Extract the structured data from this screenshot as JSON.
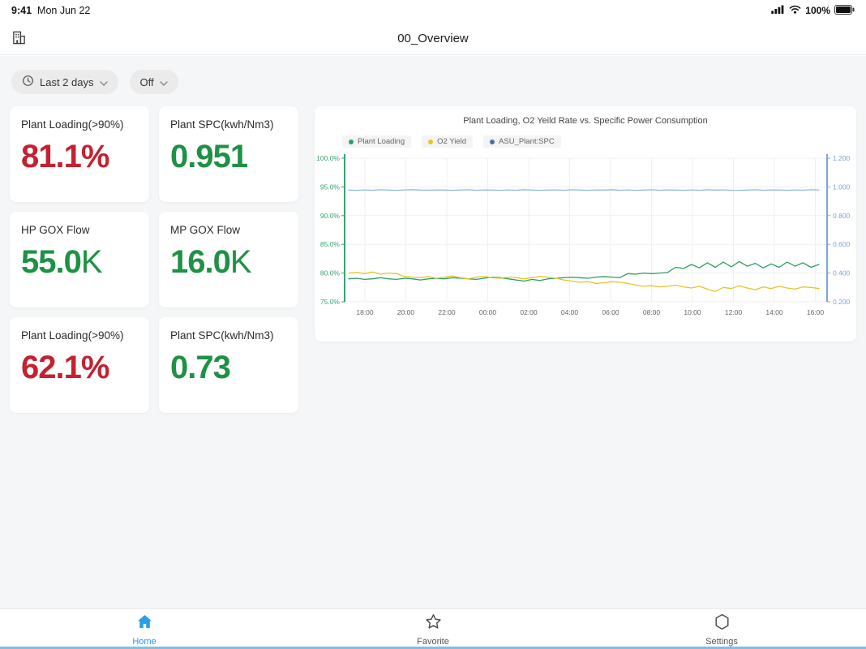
{
  "status_bar": {
    "time": "9:41",
    "date": "Mon Jun 22",
    "battery_percent": "100%"
  },
  "header": {
    "title": "00_Overview"
  },
  "filters": {
    "time_range_label": "Last 2 days",
    "toggle_label": "Off"
  },
  "kpi_cards": [
    {
      "label": "Plant Loading(>90%)",
      "value": "81.1%",
      "suffix": "",
      "color": "#c52130"
    },
    {
      "label": "Plant SPC(kwh/Nm3)",
      "value": "0.951",
      "suffix": "",
      "color": "#1e9144"
    },
    {
      "label": "HP GOX Flow",
      "value": "55.0",
      "suffix": "K",
      "color": "#1e9144"
    },
    {
      "label": "MP GOX Flow",
      "value": "16.0",
      "suffix": "K",
      "color": "#1e9144"
    },
    {
      "label": "Plant Loading(>90%)",
      "value": "62.1%",
      "suffix": "",
      "color": "#c52130"
    },
    {
      "label": "Plant SPC(kwh/Nm3)",
      "value": "0.73",
      "suffix": "",
      "color": "#1e9144"
    }
  ],
  "chart_data": {
    "type": "line",
    "title": "Plant Loading, O2 Yeild Rate vs. Specific Power Consumption",
    "legend_position": "top-left",
    "grid": true,
    "legend": [
      {
        "label": "Plant Loading",
        "color": "#2f9e63"
      },
      {
        "label": "O2 Yield",
        "color": "#e3c52c"
      },
      {
        "label": "ASU_Plant:SPC",
        "color": "#4a6fa5"
      }
    ],
    "x_tick_labels": [
      "18:00",
      "20:00",
      "22:00",
      "00:00",
      "02:00",
      "04:00",
      "06:00",
      "08:00",
      "10:00",
      "12:00",
      "14:00",
      "16:00"
    ],
    "left_axis": {
      "label_ticks": [
        "100.0%",
        "95.0%",
        "90.0%",
        "85.0%",
        "80.0%",
        "75.0%"
      ],
      "min": 75,
      "max": 100,
      "color": "#3aa273"
    },
    "right_axis": {
      "label_ticks": [
        "1.200",
        "1.000",
        "0.800",
        "0.600",
        "0.400",
        "0.200"
      ],
      "min": 0.2,
      "max": 1.2,
      "color": "#7ca6d8"
    },
    "series": [
      {
        "name": "Plant Loading",
        "axis": "left",
        "color": "#2f9e63",
        "values": [
          79.0,
          79.1,
          78.9,
          79.0,
          79.2,
          79.0,
          78.9,
          79.1,
          79.0,
          78.8,
          79.0,
          79.1,
          79.0,
          79.2,
          79.1,
          79.0,
          78.9,
          79.1,
          79.3,
          79.2,
          79.0,
          78.8,
          78.6,
          78.9,
          78.7,
          79.0,
          79.1,
          79.2,
          79.3,
          79.2,
          79.1,
          79.3,
          79.4,
          79.3,
          79.2,
          79.9,
          79.8,
          80.0,
          79.9,
          80.0,
          80.1,
          81.0,
          80.8,
          81.5,
          80.9,
          81.8,
          81.0,
          81.9,
          81.1,
          82.0,
          81.2,
          81.7,
          80.9,
          81.6,
          81.0,
          81.9,
          81.2,
          81.8,
          81.0,
          81.5
        ]
      },
      {
        "name": "O2 Yield",
        "axis": "left",
        "color": "#e3c52c",
        "values": [
          80.0,
          80.1,
          79.9,
          80.2,
          79.8,
          80.0,
          79.9,
          79.4,
          79.3,
          79.2,
          79.4,
          79.1,
          79.3,
          79.5,
          79.2,
          79.0,
          79.3,
          79.4,
          79.2,
          79.1,
          79.3,
          79.2,
          79.0,
          79.2,
          79.4,
          79.3,
          79.1,
          78.8,
          78.6,
          78.4,
          78.5,
          78.2,
          78.3,
          78.5,
          78.4,
          78.2,
          77.9,
          77.7,
          77.8,
          77.6,
          77.7,
          77.9,
          77.6,
          77.4,
          77.7,
          77.2,
          76.8,
          77.5,
          77.3,
          77.8,
          77.4,
          77.1,
          77.6,
          77.3,
          77.7,
          77.4,
          77.2,
          77.6,
          77.5,
          77.3
        ]
      },
      {
        "name": "ASU_Plant:SPC",
        "axis": "right",
        "color": "#93b7e4",
        "values": [
          0.978,
          0.976,
          0.979,
          0.977,
          0.98,
          0.978,
          0.976,
          0.979,
          0.981,
          0.978,
          0.977,
          0.979,
          0.978,
          0.976,
          0.978,
          0.98,
          0.977,
          0.979,
          0.978,
          0.976,
          0.979,
          0.977,
          0.981,
          0.978,
          0.976,
          0.978,
          0.979,
          0.977,
          0.98,
          0.978,
          0.976,
          0.979,
          0.978,
          0.981,
          0.977,
          0.979,
          0.976,
          0.978,
          0.98,
          0.977,
          0.979,
          0.978,
          0.976,
          0.979,
          0.977,
          0.98,
          0.978,
          0.979,
          0.977,
          0.976,
          0.978,
          0.98,
          0.977,
          0.979,
          0.978,
          0.976,
          0.979,
          0.977,
          0.98,
          0.979
        ]
      }
    ]
  },
  "bottom_nav": {
    "active_color": "#2196f3",
    "items": [
      {
        "label": "Home",
        "active": true
      },
      {
        "label": "Favorite",
        "active": false
      },
      {
        "label": "Settings",
        "active": false
      }
    ]
  }
}
